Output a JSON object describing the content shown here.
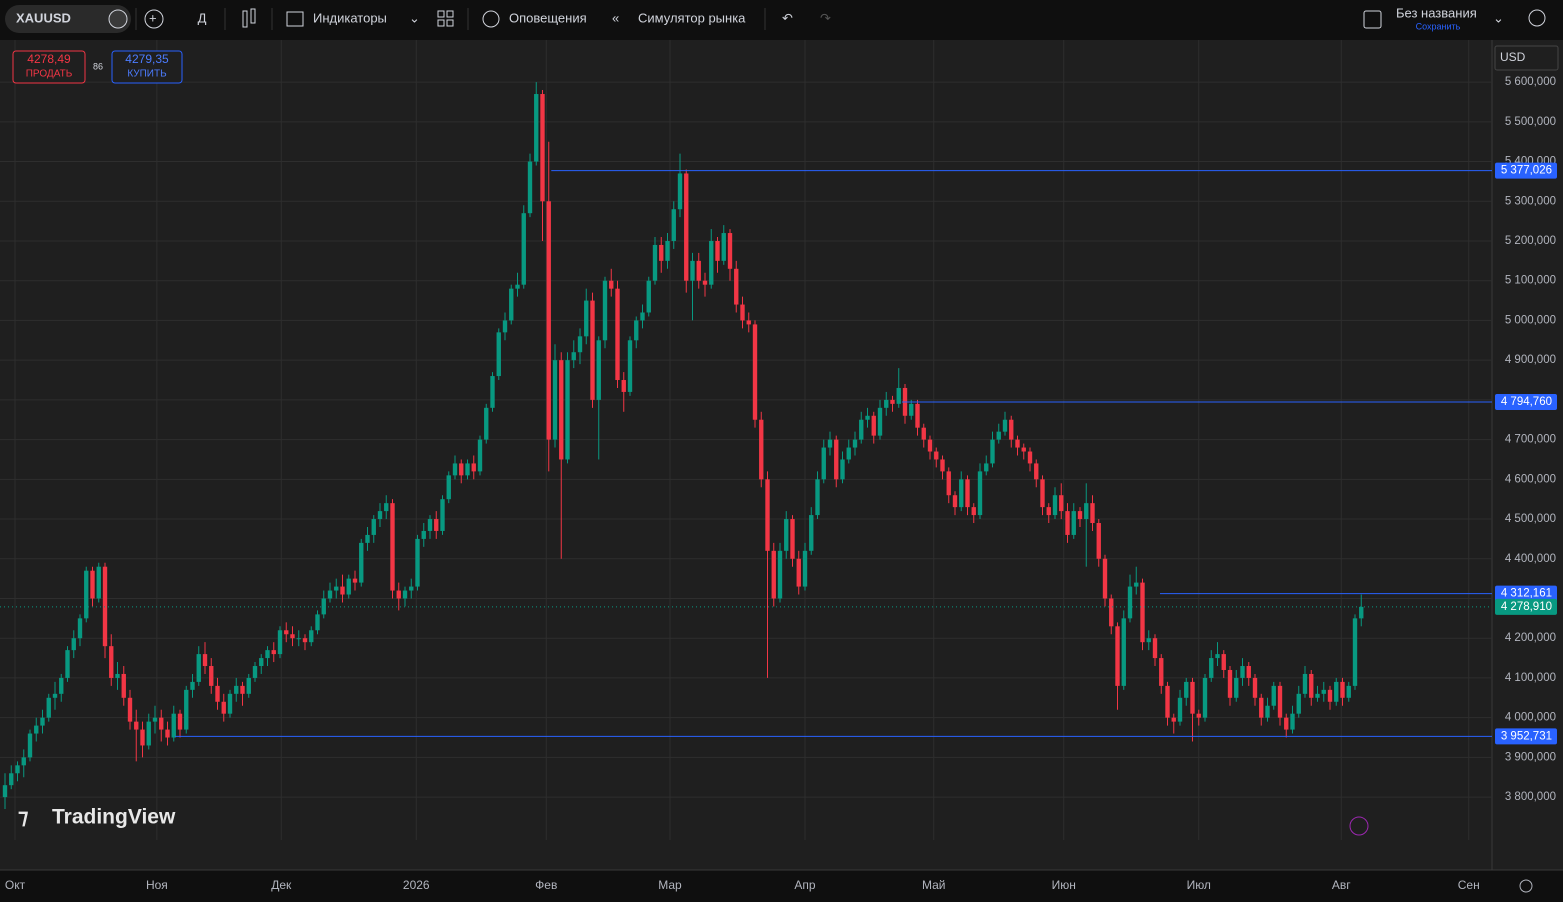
{
  "toolbar": {
    "symbol": "XAUUSD",
    "interval": "Д",
    "indicators": "Индикаторы",
    "alerts": "Оповещения",
    "replay": "Симулятор рынка",
    "layout_name": "Без названия",
    "save": "Сохранить"
  },
  "trade_panel": {
    "sell_price": "4278,49",
    "sell_label": "ПРОДАТЬ",
    "spread": "86",
    "buy_price": "4279,35",
    "buy_label": "КУПИТЬ"
  },
  "watermark": "TradingView",
  "currency": "USD",
  "chart_data": {
    "type": "candlestick",
    "up_color": "#089981",
    "down_color": "#f23645",
    "grid": true,
    "xlim": [
      -0.8,
      237.6
    ],
    "xticks": [
      {
        "value": 1.6,
        "label": "Окт"
      },
      {
        "value": 24.3,
        "label": "Ноя"
      },
      {
        "value": 44.2,
        "label": "Дек"
      },
      {
        "value": 65.8,
        "label": "2026"
      },
      {
        "value": 86.6,
        "label": "Фев"
      },
      {
        "value": 106.4,
        "label": "Мар"
      },
      {
        "value": 128,
        "label": "Апр"
      },
      {
        "value": 148.6,
        "label": "Май"
      },
      {
        "value": 169.4,
        "label": "Июн"
      },
      {
        "value": 191,
        "label": "Июл"
      },
      {
        "value": 213.8,
        "label": "Авг"
      },
      {
        "value": 234.2,
        "label": "Сен"
      }
    ],
    "ylim": [
      3692,
      5706
    ],
    "yticks": [
      {
        "value": 3800,
        "label": "3 800,000"
      },
      {
        "value": 3900,
        "label": "3 900,000"
      },
      {
        "value": 4000,
        "label": "4 000,000"
      },
      {
        "value": 4100,
        "label": "4 100,000"
      },
      {
        "value": 4200,
        "label": "4 200,000"
      },
      {
        "value": 4300,
        "label": "4 300,000"
      },
      {
        "value": 4400,
        "label": "4 400,000"
      },
      {
        "value": 4500,
        "label": "4 500,000"
      },
      {
        "value": 4600,
        "label": "4 600,000"
      },
      {
        "value": 4700,
        "label": "4 700,000"
      },
      {
        "value": 4800,
        "label": "4 800,000"
      },
      {
        "value": 4900,
        "label": "4 900,000"
      },
      {
        "value": 5000,
        "label": "5 000,000"
      },
      {
        "value": 5100,
        "label": "5 100,000"
      },
      {
        "value": 5200,
        "label": "5 200,000"
      },
      {
        "value": 5300,
        "label": "5 300,000"
      },
      {
        "value": 5400,
        "label": "5 400,000"
      },
      {
        "value": 5500,
        "label": "5 500,000"
      },
      {
        "value": 5600,
        "label": "5 600,000"
      }
    ],
    "price_lines": [
      {
        "value": 5377.026,
        "label": "5 377,026",
        "start": 87.4,
        "color": "#2962ff"
      },
      {
        "value": 4794.76,
        "label": "4 794,760",
        "start": 143.5,
        "color": "#2962ff"
      },
      {
        "value": 4312.161,
        "label": "4 312,161",
        "start": 184.8,
        "color": "#2962ff"
      },
      {
        "value": 3952.731,
        "label": "3 952,731",
        "start": 27.2,
        "color": "#2962ff"
      }
    ],
    "last_price": {
      "value": 4278.91,
      "label": "4 278,910",
      "color": "#089981"
    },
    "candles": [
      [
        3800,
        3860,
        3770,
        3830
      ],
      [
        3830,
        3880,
        3820,
        3860
      ],
      [
        3860,
        3890,
        3840,
        3880
      ],
      [
        3880,
        3920,
        3850,
        3900
      ],
      [
        3900,
        3970,
        3890,
        3960
      ],
      [
        3960,
        4000,
        3940,
        3980
      ],
      [
        3980,
        4020,
        3960,
        4000
      ],
      [
        4000,
        4060,
        3990,
        4050
      ],
      [
        4050,
        4090,
        4020,
        4060
      ],
      [
        4060,
        4110,
        4040,
        4100
      ],
      [
        4100,
        4180,
        4090,
        4170
      ],
      [
        4170,
        4220,
        4150,
        4200
      ],
      [
        4200,
        4260,
        4180,
        4250
      ],
      [
        4250,
        4380,
        4240,
        4370
      ],
      [
        4370,
        4380,
        4280,
        4300
      ],
      [
        4300,
        4390,
        4290,
        4380
      ],
      [
        4380,
        4390,
        4150,
        4180
      ],
      [
        4180,
        4210,
        4080,
        4100
      ],
      [
        4100,
        4140,
        4070,
        4110
      ],
      [
        4110,
        4130,
        4030,
        4050
      ],
      [
        4050,
        4070,
        3970,
        3990
      ],
      [
        3990,
        4020,
        3890,
        3970
      ],
      [
        3970,
        3990,
        3900,
        3930
      ],
      [
        3930,
        4010,
        3920,
        3990
      ],
      [
        3990,
        4030,
        3960,
        4000
      ],
      [
        4000,
        4020,
        3940,
        3970
      ],
      [
        3970,
        3990,
        3930,
        3950
      ],
      [
        3950,
        4030,
        3940,
        4010
      ],
      [
        4010,
        4020,
        3950,
        3970
      ],
      [
        3970,
        4080,
        3960,
        4070
      ],
      [
        4070,
        4110,
        4050,
        4090
      ],
      [
        4090,
        4180,
        4080,
        4160
      ],
      [
        4160,
        4190,
        4110,
        4130
      ],
      [
        4130,
        4150,
        4060,
        4080
      ],
      [
        4080,
        4100,
        4020,
        4040
      ],
      [
        4040,
        4060,
        3990,
        4010
      ],
      [
        4010,
        4070,
        4000,
        4060
      ],
      [
        4060,
        4100,
        4040,
        4080
      ],
      [
        4080,
        4090,
        4030,
        4060
      ],
      [
        4060,
        4110,
        4050,
        4100
      ],
      [
        4100,
        4140,
        4090,
        4130
      ],
      [
        4130,
        4160,
        4110,
        4150
      ],
      [
        4150,
        4180,
        4130,
        4170
      ],
      [
        4170,
        4190,
        4140,
        4160
      ],
      [
        4160,
        4230,
        4150,
        4220
      ],
      [
        4220,
        4240,
        4190,
        4210
      ],
      [
        4210,
        4230,
        4180,
        4200
      ],
      [
        4200,
        4220,
        4180,
        4200
      ],
      [
        4200,
        4210,
        4170,
        4190
      ],
      [
        4190,
        4230,
        4180,
        4220
      ],
      [
        4220,
        4270,
        4210,
        4260
      ],
      [
        4260,
        4320,
        4250,
        4300
      ],
      [
        4300,
        4340,
        4290,
        4320
      ],
      [
        4320,
        4350,
        4300,
        4330
      ],
      [
        4330,
        4360,
        4290,
        4310
      ],
      [
        4310,
        4360,
        4300,
        4350
      ],
      [
        4350,
        4370,
        4320,
        4340
      ],
      [
        4340,
        4450,
        4330,
        4440
      ],
      [
        4440,
        4480,
        4420,
        4460
      ],
      [
        4460,
        4510,
        4440,
        4500
      ],
      [
        4500,
        4540,
        4480,
        4520
      ],
      [
        4520,
        4560,
        4500,
        4540
      ],
      [
        4540,
        4550,
        4300,
        4320
      ],
      [
        4320,
        4340,
        4270,
        4300
      ],
      [
        4300,
        4330,
        4280,
        4320
      ],
      [
        4320,
        4350,
        4300,
        4330
      ],
      [
        4330,
        4460,
        4320,
        4450
      ],
      [
        4450,
        4490,
        4430,
        4470
      ],
      [
        4470,
        4510,
        4450,
        4500
      ],
      [
        4500,
        4520,
        4450,
        4470
      ],
      [
        4470,
        4560,
        4460,
        4550
      ],
      [
        4550,
        4620,
        4540,
        4610
      ],
      [
        4610,
        4660,
        4600,
        4640
      ],
      [
        4640,
        4650,
        4590,
        4610
      ],
      [
        4610,
        4650,
        4600,
        4640
      ],
      [
        4640,
        4660,
        4600,
        4620
      ],
      [
        4620,
        4710,
        4610,
        4700
      ],
      [
        4700,
        4790,
        4690,
        4780
      ],
      [
        4780,
        4870,
        4770,
        4860
      ],
      [
        4860,
        4980,
        4850,
        4970
      ],
      [
        4970,
        5020,
        4950,
        5000
      ],
      [
        5000,
        5090,
        4990,
        5080
      ],
      [
        5080,
        5120,
        5060,
        5090
      ],
      [
        5090,
        5290,
        5080,
        5270
      ],
      [
        5270,
        5420,
        5260,
        5400
      ],
      [
        5400,
        5600,
        5390,
        5570
      ],
      [
        5570,
        5580,
        5200,
        5300
      ],
      [
        5300,
        5450,
        4620,
        4700
      ],
      [
        4700,
        4940,
        4680,
        4900
      ],
      [
        4900,
        4920,
        4400,
        4650
      ],
      [
        4650,
        4920,
        4640,
        4900
      ],
      [
        4900,
        4950,
        4880,
        4920
      ],
      [
        4920,
        4980,
        4890,
        4960
      ],
      [
        4960,
        5080,
        4940,
        5050
      ],
      [
        5050,
        5070,
        4780,
        4800
      ],
      [
        4800,
        4960,
        4650,
        4950
      ],
      [
        4950,
        5110,
        4930,
        5100
      ],
      [
        5100,
        5130,
        5060,
        5080
      ],
      [
        5080,
        5100,
        4830,
        4850
      ],
      [
        4850,
        4870,
        4770,
        4820
      ],
      [
        4820,
        4960,
        4810,
        4950
      ],
      [
        4950,
        5010,
        4930,
        5000
      ],
      [
        5000,
        5040,
        4980,
        5020
      ],
      [
        5020,
        5110,
        5010,
        5100
      ],
      [
        5100,
        5210,
        5090,
        5190
      ],
      [
        5190,
        5210,
        5120,
        5150
      ],
      [
        5150,
        5220,
        5130,
        5200
      ],
      [
        5200,
        5300,
        5180,
        5280
      ],
      [
        5280,
        5420,
        5260,
        5370
      ],
      [
        5370,
        5380,
        5070,
        5100
      ],
      [
        5100,
        5170,
        5000,
        5150
      ],
      [
        5150,
        5170,
        5080,
        5100
      ],
      [
        5100,
        5120,
        5060,
        5090
      ],
      [
        5090,
        5230,
        5080,
        5200
      ],
      [
        5200,
        5210,
        5120,
        5150
      ],
      [
        5150,
        5240,
        5140,
        5220
      ],
      [
        5220,
        5230,
        5100,
        5130
      ],
      [
        5130,
        5150,
        5020,
        5040
      ],
      [
        5040,
        5060,
        4980,
        5000
      ],
      [
        5000,
        5020,
        4970,
        4990
      ],
      [
        4990,
        5000,
        4730,
        4750
      ],
      [
        4750,
        4770,
        4580,
        4600
      ],
      [
        4600,
        4620,
        4100,
        4420
      ],
      [
        4420,
        4440,
        4280,
        4300
      ],
      [
        4300,
        4440,
        4290,
        4420
      ],
      [
        4420,
        4520,
        4400,
        4500
      ],
      [
        4500,
        4510,
        4380,
        4400
      ],
      [
        4400,
        4420,
        4310,
        4330
      ],
      [
        4330,
        4440,
        4320,
        4420
      ],
      [
        4420,
        4530,
        4410,
        4510
      ],
      [
        4510,
        4620,
        4500,
        4600
      ],
      [
        4600,
        4700,
        4590,
        4680
      ],
      [
        4680,
        4720,
        4660,
        4700
      ],
      [
        4700,
        4710,
        4580,
        4600
      ],
      [
        4600,
        4670,
        4590,
        4650
      ],
      [
        4650,
        4700,
        4640,
        4680
      ],
      [
        4680,
        4720,
        4660,
        4700
      ],
      [
        4700,
        4770,
        4690,
        4750
      ],
      [
        4750,
        4780,
        4730,
        4760
      ],
      [
        4760,
        4770,
        4690,
        4710
      ],
      [
        4710,
        4800,
        4700,
        4780
      ],
      [
        4780,
        4820,
        4760,
        4800
      ],
      [
        4800,
        4810,
        4770,
        4790
      ],
      [
        4790,
        4880,
        4780,
        4830
      ],
      [
        4830,
        4840,
        4740,
        4760
      ],
      [
        4760,
        4800,
        4750,
        4790
      ],
      [
        4790,
        4800,
        4710,
        4730
      ],
      [
        4730,
        4740,
        4680,
        4700
      ],
      [
        4700,
        4710,
        4650,
        4670
      ],
      [
        4670,
        4680,
        4630,
        4650
      ],
      [
        4650,
        4660,
        4600,
        4620
      ],
      [
        4620,
        4630,
        4540,
        4560
      ],
      [
        4560,
        4570,
        4510,
        4530
      ],
      [
        4530,
        4620,
        4520,
        4600
      ],
      [
        4600,
        4610,
        4510,
        4530
      ],
      [
        4530,
        4540,
        4490,
        4510
      ],
      [
        4510,
        4640,
        4500,
        4620
      ],
      [
        4620,
        4660,
        4610,
        4640
      ],
      [
        4640,
        4720,
        4630,
        4700
      ],
      [
        4700,
        4740,
        4690,
        4720
      ],
      [
        4720,
        4770,
        4710,
        4750
      ],
      [
        4750,
        4760,
        4680,
        4700
      ],
      [
        4700,
        4710,
        4660,
        4680
      ],
      [
        4680,
        4690,
        4650,
        4670
      ],
      [
        4670,
        4680,
        4620,
        4640
      ],
      [
        4640,
        4650,
        4580,
        4600
      ],
      [
        4600,
        4610,
        4510,
        4530
      ],
      [
        4530,
        4540,
        4490,
        4510
      ],
      [
        4510,
        4580,
        4500,
        4560
      ],
      [
        4560,
        4590,
        4500,
        4520
      ],
      [
        4520,
        4540,
        4440,
        4460
      ],
      [
        4460,
        4540,
        4450,
        4520
      ],
      [
        4520,
        4530,
        4480,
        4500
      ],
      [
        4500,
        4590,
        4380,
        4540
      ],
      [
        4540,
        4560,
        4470,
        4490
      ],
      [
        4490,
        4500,
        4380,
        4400
      ],
      [
        4400,
        4410,
        4280,
        4300
      ],
      [
        4300,
        4310,
        4210,
        4230
      ],
      [
        4230,
        4240,
        4020,
        4080
      ],
      [
        4080,
        4270,
        4070,
        4250
      ],
      [
        4250,
        4360,
        4240,
        4330
      ],
      [
        4330,
        4380,
        4310,
        4340
      ],
      [
        4340,
        4350,
        4170,
        4190
      ],
      [
        4190,
        4220,
        4170,
        4200
      ],
      [
        4200,
        4210,
        4130,
        4150
      ],
      [
        4150,
        4160,
        4060,
        4080
      ],
      [
        4080,
        4090,
        3980,
        4000
      ],
      [
        4000,
        4010,
        3960,
        3990
      ],
      [
        3990,
        4070,
        3980,
        4050
      ],
      [
        4050,
        4100,
        4030,
        4090
      ],
      [
        4090,
        4100,
        3940,
        4010
      ],
      [
        4010,
        4020,
        3980,
        4000
      ],
      [
        4000,
        4110,
        3990,
        4100
      ],
      [
        4100,
        4170,
        4090,
        4150
      ],
      [
        4150,
        4190,
        4130,
        4160
      ],
      [
        4160,
        4170,
        4100,
        4120
      ],
      [
        4120,
        4130,
        4030,
        4050
      ],
      [
        4050,
        4120,
        4040,
        4100
      ],
      [
        4100,
        4150,
        4080,
        4130
      ],
      [
        4130,
        4140,
        4080,
        4100
      ],
      [
        4100,
        4110,
        4030,
        4050
      ],
      [
        4050,
        4060,
        3980,
        4000
      ],
      [
        4000,
        4050,
        3990,
        4030
      ],
      [
        4030,
        4090,
        4020,
        4080
      ],
      [
        4080,
        4090,
        3980,
        4000
      ],
      [
        4000,
        4010,
        3950,
        3970
      ],
      [
        3970,
        4030,
        3960,
        4010
      ],
      [
        4010,
        4080,
        4000,
        4060
      ],
      [
        4060,
        4130,
        4050,
        4110
      ],
      [
        4110,
        4120,
        4030,
        4050
      ],
      [
        4050,
        4080,
        4040,
        4060
      ],
      [
        4060,
        4090,
        4040,
        4070
      ],
      [
        4070,
        4080,
        4020,
        4040
      ],
      [
        4040,
        4100,
        4030,
        4090
      ],
      [
        4090,
        4100,
        4030,
        4050
      ],
      [
        4050,
        4090,
        4040,
        4080
      ],
      [
        4080,
        4260,
        4070,
        4250
      ],
      [
        4250,
        4310,
        4230,
        4278.91
      ]
    ]
  }
}
